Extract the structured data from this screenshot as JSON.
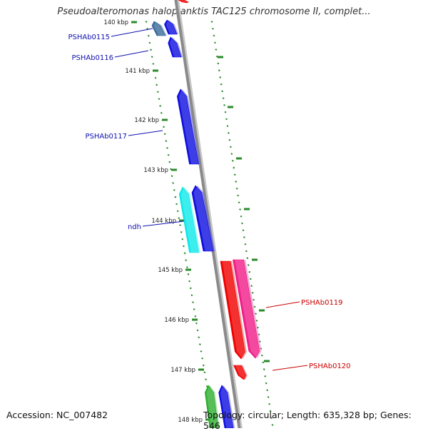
{
  "header": {
    "title": "Pseudoalteromonas haloplanktis TAC125 chromosome II, complet..."
  },
  "footer": {
    "accession": "Accession: NC_007482",
    "summary": "Topology: circular; Length: 635,328 bp; Genes: 546"
  },
  "colors": {
    "backbone": "#8a8a8a",
    "tick": "#2a8a2a",
    "gene_blue": "#1010e0",
    "gene_steel": "#3a6a9a",
    "gene_cyan": "#10e8e8",
    "gene_red": "#f00000",
    "gene_pink": "#f0208a",
    "gene_green": "#30b030",
    "label_blue": "#1010b0",
    "label_red": "#cc0000"
  },
  "scale": {
    "unit": "kbp",
    "ticks": [
      "140 kbp",
      "141 kbp",
      "142 kbp",
      "143 kbp",
      "144 kbp",
      "145 kbp",
      "146 kbp",
      "147 kbp",
      "148 kbp"
    ]
  },
  "gene_labels": [
    {
      "name": "PSHAb0115",
      "color": "label_blue"
    },
    {
      "name": "PSHAb0116",
      "color": "label_blue"
    },
    {
      "name": "PSHAb0117",
      "color": "label_blue"
    },
    {
      "name": "ndh",
      "color": "label_blue"
    },
    {
      "name": "PSHAb0119",
      "color": "label_red"
    },
    {
      "name": "PSHAb0120",
      "color": "label_red"
    }
  ],
  "genes": [
    {
      "strand": "forward",
      "color": "gene_steel"
    },
    {
      "strand": "forward",
      "color": "gene_blue"
    },
    {
      "strand": "forward",
      "color": "gene_blue"
    },
    {
      "strand": "forward",
      "color": "gene_blue"
    },
    {
      "strand": "forward",
      "color": "gene_cyan"
    },
    {
      "strand": "forward",
      "color": "gene_blue"
    },
    {
      "strand": "reverse",
      "color": "gene_red"
    },
    {
      "strand": "reverse",
      "color": "gene_pink"
    },
    {
      "strand": "reverse",
      "color": "gene_red"
    },
    {
      "strand": "forward",
      "color": "gene_green"
    },
    {
      "strand": "forward",
      "color": "gene_blue"
    },
    {
      "strand": "reverse",
      "color": "gene_red"
    }
  ]
}
